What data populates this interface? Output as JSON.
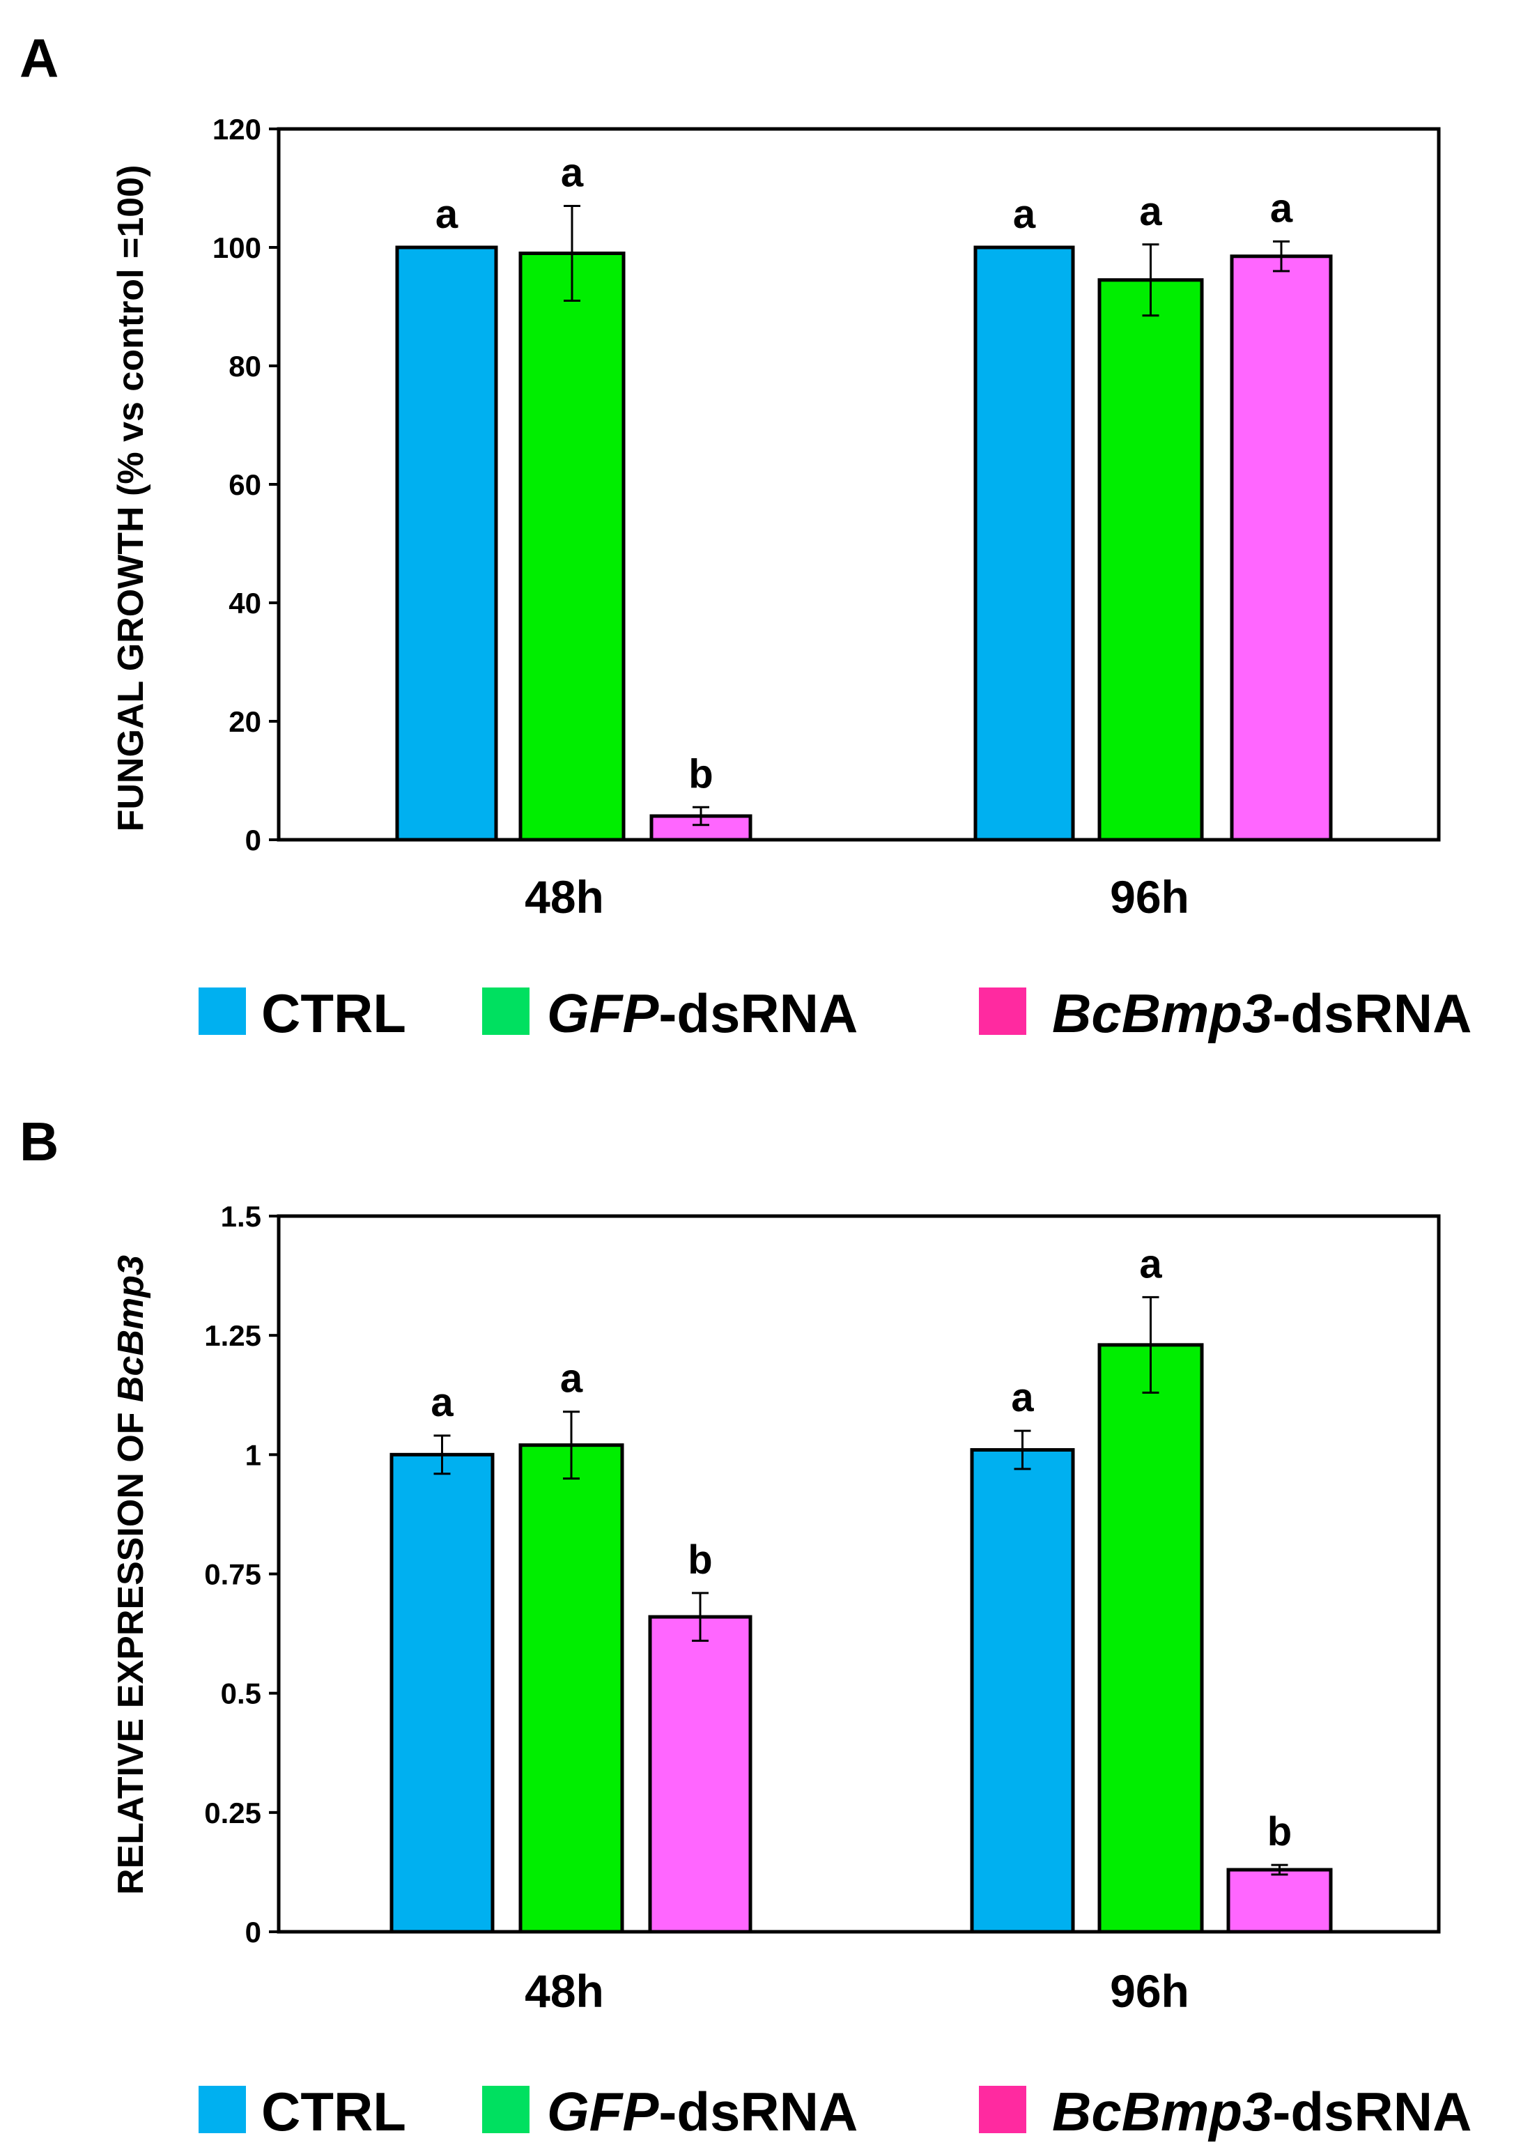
{
  "series_names": [
    "CTRL",
    "GFP-dsRNA",
    "BcBmp3-dsRNA"
  ],
  "legend": [
    {
      "name": "CTRL",
      "italic": "",
      "rest": "CTRL",
      "color": "#00b0f0"
    },
    {
      "name": "GFP-dsRNA",
      "italic": "GFP",
      "rest": "-dsRNA",
      "color": "#00e060"
    },
    {
      "name": "BcBmp3-dsRNA",
      "italic": "BcBmp3",
      "rest": "-dsRNA",
      "color": "#ff2aa0"
    }
  ],
  "chart_data": [
    {
      "type": "bar",
      "panel": "A",
      "title": "",
      "xlabel": "",
      "ylabel": "FUNGAL GROWTH (% vs control =100)",
      "ylabel_italic": "",
      "categories": [
        "48h",
        "96h"
      ],
      "ylim": [
        0,
        120
      ],
      "yticks": [
        0,
        20,
        40,
        60,
        80,
        100,
        120
      ],
      "ytick_labels": [
        "0",
        "20",
        "40",
        "60",
        "80",
        "100",
        "120"
      ],
      "series": [
        {
          "name": "CTRL",
          "color": "#00b0f0",
          "values": [
            100,
            100
          ],
          "errors": [
            0,
            0
          ],
          "significance": [
            "a",
            "a"
          ]
        },
        {
          "name": "GFP-dsRNA",
          "color": "#00ee00",
          "values": [
            99,
            94.5
          ],
          "errors": [
            8,
            6
          ],
          "significance": [
            "a",
            "a"
          ]
        },
        {
          "name": "BcBmp3-dsRNA",
          "color": "#ff66ff",
          "values": [
            4,
            98.5
          ],
          "errors": [
            1.5,
            2.5
          ],
          "significance": [
            "b",
            "a"
          ]
        }
      ]
    },
    {
      "type": "bar",
      "panel": "B",
      "title": "",
      "xlabel": "",
      "ylabel": "RELATIVE EXPRESSION OF ",
      "ylabel_italic": "BcBmp3",
      "categories": [
        "48h",
        "96h"
      ],
      "ylim": [
        0,
        1.5
      ],
      "yticks": [
        0,
        0.25,
        0.5,
        0.75,
        1,
        1.25,
        1.5
      ],
      "ytick_labels": [
        "0",
        "0.25",
        "0.5",
        "0.75",
        "1",
        "1.25",
        "1.5"
      ],
      "series": [
        {
          "name": "CTRL",
          "color": "#00b0f0",
          "values": [
            1.0,
            1.01
          ],
          "errors": [
            0.04,
            0.04
          ],
          "significance": [
            "a",
            "a"
          ]
        },
        {
          "name": "GFP-dsRNA",
          "color": "#00ee00",
          "values": [
            1.02,
            1.23
          ],
          "errors": [
            0.07,
            0.1
          ],
          "significance": [
            "a",
            "a"
          ]
        },
        {
          "name": "BcBmp3-dsRNA",
          "color": "#ff66ff",
          "values": [
            0.66,
            0.13
          ],
          "errors": [
            0.05,
            0.01
          ],
          "significance": [
            "b",
            "b"
          ]
        }
      ]
    }
  ]
}
